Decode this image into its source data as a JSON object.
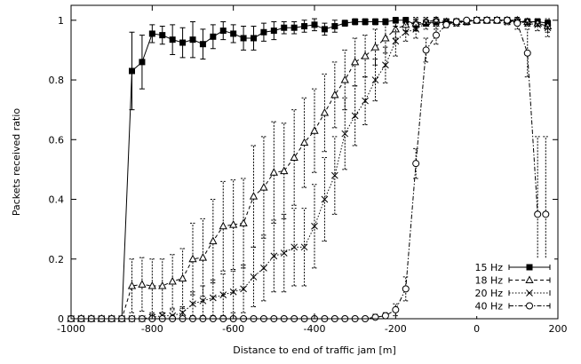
{
  "chart_data": {
    "type": "line",
    "title": "",
    "xlabel": "Distance to end of traffic jam [m]",
    "ylabel": "Packets received ratio",
    "xlim": [
      -1000,
      200
    ],
    "ylim": [
      0,
      1.05
    ],
    "xticks": [
      -1000,
      -800,
      -600,
      -400,
      -200,
      0,
      200
    ],
    "xtick_labels": [
      "-1000",
      "-800",
      "-600",
      "-400",
      "-200",
      "0",
      "200"
    ],
    "yticks": [
      0,
      0.2,
      0.4,
      0.6,
      0.8,
      1
    ],
    "ytick_labels": [
      "0",
      "0.2",
      "0.4",
      "0.6",
      "0.8",
      "1"
    ],
    "grid": false,
    "legend_position": "bottom-right",
    "series": [
      {
        "name": "15 Hz",
        "marker": "filled-square",
        "line": "solid",
        "x": [
          -1000,
          -975,
          -950,
          -925,
          -900,
          -875,
          -850,
          -825,
          -800,
          -775,
          -750,
          -725,
          -700,
          -675,
          -650,
          -625,
          -600,
          -575,
          -550,
          -525,
          -500,
          -475,
          -450,
          -425,
          -400,
          -375,
          -350,
          -325,
          -300,
          -275,
          -250,
          -225,
          -200,
          -175,
          -150,
          -125,
          -100,
          -75,
          -50,
          -25,
          0,
          25,
          50,
          75,
          100,
          125,
          150,
          175
        ],
        "y": [
          0,
          0,
          0,
          0,
          0,
          0,
          0.83,
          0.86,
          0.955,
          0.95,
          0.935,
          0.925,
          0.935,
          0.92,
          0.945,
          0.965,
          0.955,
          0.94,
          0.94,
          0.96,
          0.965,
          0.975,
          0.975,
          0.98,
          0.985,
          0.97,
          0.98,
          0.99,
          0.995,
          0.995,
          0.995,
          0.995,
          1,
          1,
          0.985,
          0.99,
          0.995,
          0.99,
          0.995,
          0.995,
          1,
          1,
          1,
          1,
          0.995,
          0.995,
          0.995,
          0.99
        ],
        "err": [
          0,
          0,
          0,
          0,
          0,
          0,
          0.13,
          0.09,
          0.03,
          0.03,
          0.05,
          0.05,
          0.06,
          0.05,
          0.04,
          0.03,
          0.03,
          0.04,
          0.04,
          0.03,
          0.03,
          0.02,
          0.02,
          0.02,
          0.02,
          0.02,
          0.02,
          0.01,
          0.01,
          0.01,
          0.01,
          0.01,
          0.01,
          0.01,
          0.02,
          0.01,
          0.01,
          0.01,
          0.01,
          0.01,
          0.01,
          0.01,
          0.01,
          0.01,
          0.01,
          0.01,
          0.01,
          0.01
        ]
      },
      {
        "name": "18 Hz",
        "marker": "open-triangle",
        "line": "dashed",
        "x": [
          -1000,
          -975,
          -950,
          -925,
          -900,
          -875,
          -850,
          -825,
          -800,
          -775,
          -750,
          -725,
          -700,
          -675,
          -650,
          -625,
          -600,
          -575,
          -550,
          -525,
          -500,
          -475,
          -450,
          -425,
          -400,
          -375,
          -350,
          -325,
          -300,
          -275,
          -250,
          -225,
          -200,
          -175,
          -150,
          -125,
          -100,
          -75,
          -50,
          -25,
          0,
          25,
          50,
          75,
          100,
          125,
          150,
          175
        ],
        "y": [
          0,
          0,
          0,
          0,
          0,
          0,
          0.11,
          0.115,
          0.11,
          0.11,
          0.125,
          0.135,
          0.2,
          0.205,
          0.26,
          0.31,
          0.315,
          0.32,
          0.41,
          0.44,
          0.49,
          0.495,
          0.54,
          0.59,
          0.63,
          0.69,
          0.75,
          0.8,
          0.86,
          0.88,
          0.91,
          0.94,
          0.97,
          0.985,
          0.99,
          0.995,
          1,
          0.995,
          0.995,
          0.995,
          1,
          1,
          1,
          1,
          1,
          0.995,
          0.99,
          0.98
        ],
        "err": [
          0,
          0,
          0,
          0,
          0,
          0,
          0.09,
          0.09,
          0.09,
          0.09,
          0.09,
          0.1,
          0.12,
          0.13,
          0.14,
          0.15,
          0.15,
          0.15,
          0.17,
          0.17,
          0.17,
          0.16,
          0.16,
          0.15,
          0.14,
          0.13,
          0.11,
          0.1,
          0.08,
          0.07,
          0.06,
          0.05,
          0.03,
          0.02,
          0.02,
          0.01,
          0.01,
          0.01,
          0.01,
          0.01,
          0.01,
          0.01,
          0.01,
          0.01,
          0.01,
          0.01,
          0.01,
          0.02
        ]
      },
      {
        "name": "20 Hz",
        "marker": "x",
        "line": "dotted",
        "x": [
          -1000,
          -975,
          -950,
          -925,
          -900,
          -875,
          -850,
          -825,
          -800,
          -775,
          -750,
          -725,
          -700,
          -675,
          -650,
          -625,
          -600,
          -575,
          -550,
          -525,
          -500,
          -475,
          -450,
          -425,
          -400,
          -375,
          -350,
          -325,
          -300,
          -275,
          -250,
          -225,
          -200,
          -175,
          -150,
          -125,
          -100,
          -75,
          -50,
          -25,
          0,
          25,
          50,
          75,
          100,
          125,
          150,
          175
        ],
        "y": [
          0,
          0,
          0,
          0,
          0,
          0,
          0,
          0,
          0.005,
          0.01,
          0.01,
          0.02,
          0.05,
          0.06,
          0.07,
          0.08,
          0.09,
          0.1,
          0.14,
          0.17,
          0.21,
          0.22,
          0.24,
          0.24,
          0.31,
          0.4,
          0.48,
          0.62,
          0.68,
          0.73,
          0.8,
          0.85,
          0.93,
          0.96,
          0.97,
          0.99,
          0.99,
          0.995,
          0.99,
          0.995,
          1,
          1,
          1,
          0.995,
          0.995,
          0.99,
          0.985,
          0.975
        ],
        "err": [
          0,
          0,
          0,
          0,
          0,
          0,
          0,
          0,
          0.01,
          0.01,
          0.02,
          0.02,
          0.04,
          0.05,
          0.06,
          0.07,
          0.07,
          0.08,
          0.1,
          0.11,
          0.12,
          0.13,
          0.13,
          0.13,
          0.14,
          0.14,
          0.13,
          0.12,
          0.1,
          0.08,
          0.07,
          0.06,
          0.05,
          0.03,
          0.03,
          0.02,
          0.02,
          0.01,
          0.01,
          0.01,
          0.01,
          0.01,
          0.01,
          0.01,
          0.01,
          0.01,
          0.02,
          0.03
        ]
      },
      {
        "name": "40 Hz",
        "marker": "open-circle",
        "line": "dash-dot",
        "x": [
          -1000,
          -975,
          -950,
          -925,
          -900,
          -875,
          -850,
          -825,
          -800,
          -775,
          -750,
          -725,
          -700,
          -675,
          -650,
          -625,
          -600,
          -575,
          -550,
          -525,
          -500,
          -475,
          -450,
          -425,
          -400,
          -375,
          -350,
          -325,
          -300,
          -275,
          -250,
          -225,
          -200,
          -175,
          -150,
          -125,
          -100,
          -75,
          -50,
          -25,
          0,
          25,
          50,
          75,
          100,
          125,
          150,
          170
        ],
        "y": [
          0,
          0,
          0,
          0,
          0,
          0,
          0,
          0,
          0,
          0,
          0,
          0,
          0,
          0,
          0,
          0,
          0,
          0,
          0,
          0,
          0,
          0,
          0,
          0,
          0,
          0,
          0,
          0,
          0,
          0,
          0.005,
          0.01,
          0.03,
          0.1,
          0.52,
          0.9,
          0.95,
          0.985,
          0.995,
          1,
          1,
          1,
          1,
          1,
          0.99,
          0.89,
          0.35,
          0.35
        ],
        "err": [
          0,
          0,
          0,
          0,
          0,
          0,
          0,
          0,
          0,
          0,
          0,
          0,
          0,
          0,
          0,
          0,
          0,
          0,
          0,
          0,
          0,
          0,
          0,
          0,
          0,
          0,
          0,
          0,
          0,
          0,
          0.01,
          0.01,
          0.02,
          0.04,
          0.05,
          0.04,
          0.03,
          0.01,
          0.01,
          0,
          0,
          0,
          0,
          0,
          0.02,
          0.08,
          0.26,
          0.26
        ]
      }
    ]
  }
}
